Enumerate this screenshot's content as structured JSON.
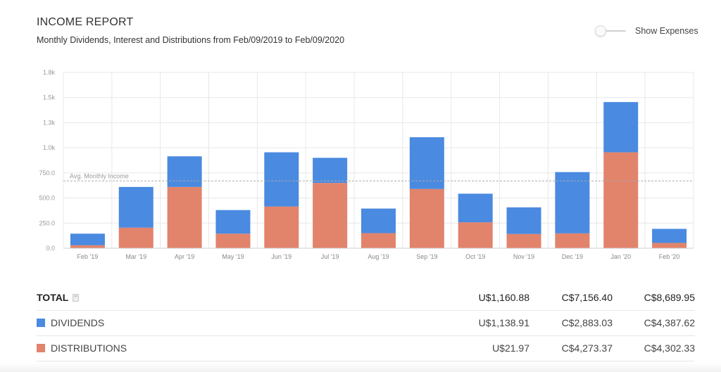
{
  "header": {
    "title": "INCOME REPORT",
    "subtitle": "Monthly Dividends, Interest and Distributions from Feb/09/2019 to Feb/09/2020"
  },
  "toggle": {
    "label": "Show Expenses",
    "on": false
  },
  "colors": {
    "dividends": "#4a8ae0",
    "distributions": "#e2836b",
    "grid": "#e8e8e8",
    "avg_line": "#aaaaaa"
  },
  "chart_data": {
    "type": "bar",
    "stacked": true,
    "categories": [
      "Feb '19",
      "Mar '19",
      "Apr '19",
      "May '19",
      "Jun '19",
      "Jul '19",
      "Aug '19",
      "Sep '19",
      "Oct '19",
      "Nov '19",
      "Dec '19",
      "Jan '20",
      "Feb '20"
    ],
    "series": [
      {
        "name": "DISTRIBUTIONS",
        "values": [
          30,
          205,
          610,
          145,
          415,
          650,
          150,
          590,
          258,
          142,
          148,
          955,
          53
        ]
      },
      {
        "name": "DIVIDENDS",
        "values": [
          115,
          405,
          305,
          235,
          540,
          250,
          245,
          515,
          285,
          265,
          610,
          500,
          140
        ]
      }
    ],
    "ylim": [
      0,
      1750
    ],
    "yticks": [
      0,
      250,
      500,
      750,
      1000,
      1250,
      1500,
      1750
    ],
    "ytick_labels": [
      "0.0",
      "250.0",
      "500.0",
      "750.0",
      "1.0k",
      "1.3k",
      "1.5k",
      "1.8k"
    ],
    "reference_line": {
      "label": "Avg. Monthly Income",
      "value": 670
    },
    "grid": true
  },
  "table": {
    "total": {
      "label": "TOTAL",
      "values": [
        "U$1,160.88",
        "C$7,156.40",
        "C$8,689.95"
      ]
    },
    "rows": [
      {
        "label": "DIVIDENDS",
        "values": [
          "U$1,138.91",
          "C$2,883.03",
          "C$4,387.62"
        ]
      },
      {
        "label": "DISTRIBUTIONS",
        "values": [
          "U$21.97",
          "C$4,273.37",
          "C$4,302.33"
        ]
      }
    ]
  }
}
